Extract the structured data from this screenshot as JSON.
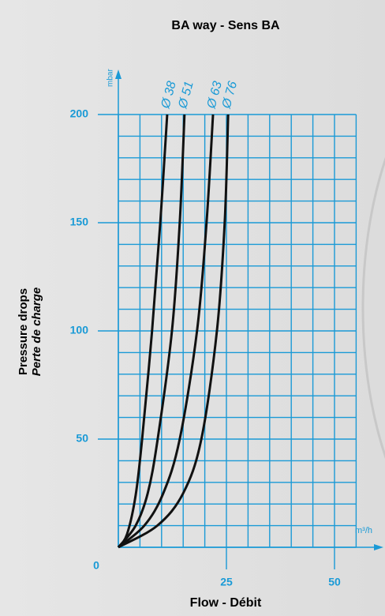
{
  "chart_data": {
    "type": "line",
    "title": "BA way - Sens BA",
    "y_label": "Pressure drops",
    "y_label_fr": "Perte  de charge",
    "x_label": "Flow - Débit",
    "y_unit": "mbar",
    "x_unit": "m³/h",
    "xlim": [
      0,
      55
    ],
    "ylim": [
      0,
      200
    ],
    "xticks": [
      25,
      50
    ],
    "yticks": [
      0,
      50,
      100,
      150,
      200
    ],
    "xminor": [
      0,
      5,
      10,
      15,
      20,
      25,
      30,
      35,
      40,
      45,
      50,
      55
    ],
    "yminor": [
      0,
      10,
      20,
      30,
      40,
      50,
      60,
      70,
      80,
      90,
      100,
      110,
      120,
      130,
      140,
      150,
      160,
      170,
      180,
      190,
      200
    ],
    "grid": true,
    "grid_color": "#1a9ad6",
    "series": [
      {
        "name": "Ø 38",
        "color": "#111111",
        "x": [
          0,
          2,
          4,
          5.5,
          7.8,
          9.7,
          11.3
        ],
        "values": [
          0,
          6,
          24,
          50,
          100,
          150,
          200
        ]
      },
      {
        "name": "Ø 51",
        "color": "#111111",
        "x": [
          0,
          4,
          6.8,
          9.1,
          12.4,
          14.2,
          15.3
        ],
        "values": [
          0,
          10,
          25,
          50,
          100,
          150,
          200
        ]
      },
      {
        "name": "Ø 63",
        "color": "#111111",
        "x": [
          0,
          6,
          10.4,
          14.2,
          18.2,
          20.4,
          21.9
        ],
        "values": [
          0,
          10,
          25,
          50,
          100,
          150,
          200
        ]
      },
      {
        "name": "Ø 76",
        "color": "#111111",
        "x": [
          0,
          9,
          15,
          19.2,
          22.8,
          24.6,
          25.4
        ],
        "values": [
          0,
          10,
          25,
          50,
          100,
          150,
          200
        ]
      }
    ]
  }
}
